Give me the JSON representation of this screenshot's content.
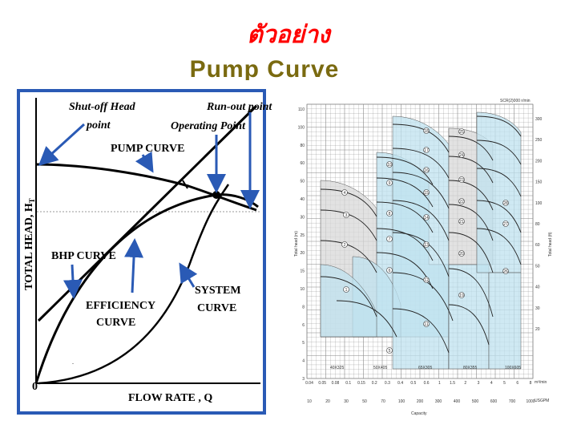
{
  "title": {
    "thai": "ตัวอย่าง",
    "english": "Pump Curve"
  },
  "left_diagram": {
    "labels": {
      "shutoff_head": "Shut-off Head",
      "shutoff_head_2": "point",
      "runout": "Run-out point",
      "operating": "Operating Point",
      "pump_curve": "PUMP CURVE",
      "bhp_curve": "BHP CURVE",
      "efficiency": "EFFICIENCY",
      "efficiency_2": "CURVE",
      "system": "SYSTEM",
      "system_2": "CURVE",
      "y_axis": "TOTAL HEAD, H",
      "y_axis_sub": "T",
      "x_axis": "FLOW RATE , Q",
      "origin": "0"
    },
    "colors": {
      "frame": "#2a5ab5",
      "arrow": "#2a5ab5"
    }
  },
  "right_chart": {
    "header": "SCR(2)000 r/min",
    "y_label_left": "Total head (m)",
    "y_label_right": "Total head (ft)",
    "x_label": "Capacity",
    "x_unit_1": "m³/min",
    "x_unit_2": "USGPM",
    "y_ticks_left": [
      "110",
      "100",
      "80",
      "60",
      "50",
      "40",
      "30",
      "25",
      "20",
      "15",
      "10",
      "8",
      "6",
      "5",
      "4",
      "3"
    ],
    "y_ticks_right": [
      "300",
      "250",
      "200",
      "150",
      "100",
      "80",
      "60",
      "50",
      "40",
      "30",
      "20"
    ],
    "x_ticks_top": [
      "0.04",
      "0.05",
      "0.08",
      "0.1",
      "0.15",
      "0.2",
      "0.3",
      "0.4",
      "0.5",
      "0.6",
      "1",
      "1.5",
      "2",
      "3",
      "4",
      "5",
      "6",
      "8"
    ],
    "x_ticks_bottom": [
      "10",
      "20",
      "30",
      "50",
      "70",
      "100",
      "200",
      "300",
      "400",
      "500",
      "600",
      "700",
      "1000"
    ],
    "model_labels": [
      "40X325",
      "50X405",
      "65X305",
      "80X355",
      "100X605"
    ],
    "circle_numbers": [
      "1",
      "2",
      "3",
      "4",
      "5",
      "6",
      "7",
      "8",
      "9",
      "10",
      "11",
      "12",
      "13",
      "14",
      "15",
      "16",
      "17",
      "18",
      "19",
      "20",
      "21",
      "22",
      "23",
      "24",
      "25",
      "26",
      "27",
      "28"
    ],
    "colors": {
      "region_blue": "#bfe1ef",
      "region_gray": "#d8d8d8",
      "grid": "#888888"
    }
  }
}
